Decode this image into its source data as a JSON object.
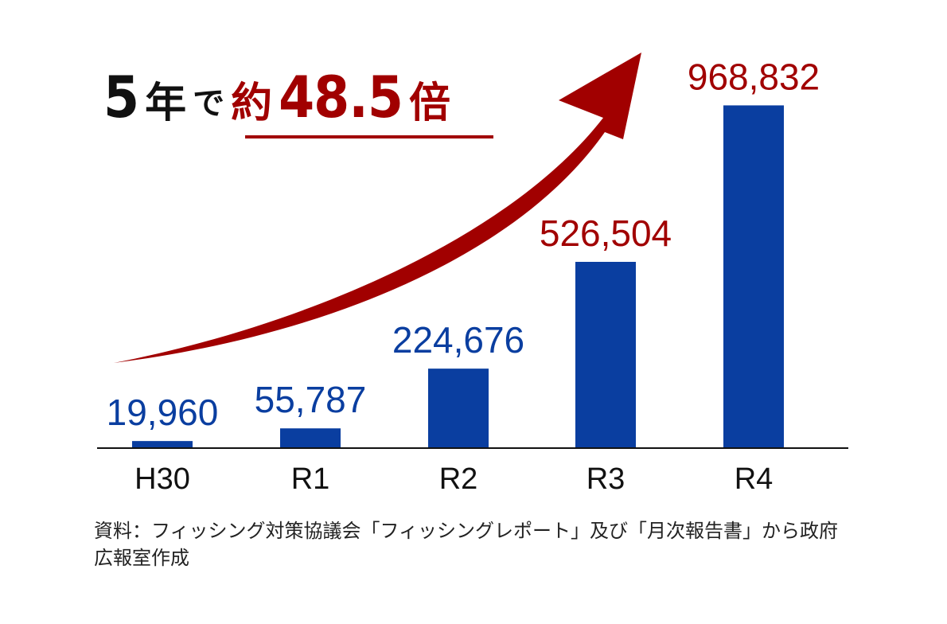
{
  "colors": {
    "bar": "#0a3ea0",
    "value_blue": "#0a3ea0",
    "value_red": "#a10000",
    "headline_dark": "#111111",
    "headline_accent": "#a10000",
    "axis": "#111111",
    "arrow": "#a10000"
  },
  "headline": {
    "years": "5",
    "year_unit": "年",
    "particle": "で",
    "approx": "約",
    "multiplier": "48.5",
    "times": "倍"
  },
  "chart_data": {
    "type": "bar",
    "categories": [
      "H30",
      "R1",
      "R2",
      "R3",
      "R4"
    ],
    "values": [
      19960,
      55787,
      224676,
      526504,
      968832
    ],
    "value_labels": [
      "19,960",
      "55,787",
      "224,676",
      "526,504",
      "968,832"
    ],
    "highlighted_indices": [
      3,
      4
    ],
    "title": "",
    "xlabel": "",
    "ylabel": "",
    "ylim": [
      0,
      1080000
    ],
    "grid": false,
    "legend": "none",
    "annotation": "growth-arrow"
  },
  "source_note": "資料：フィッシング対策協議会「フィッシングレポート」及び「月次報告書」から政府広報室作成"
}
